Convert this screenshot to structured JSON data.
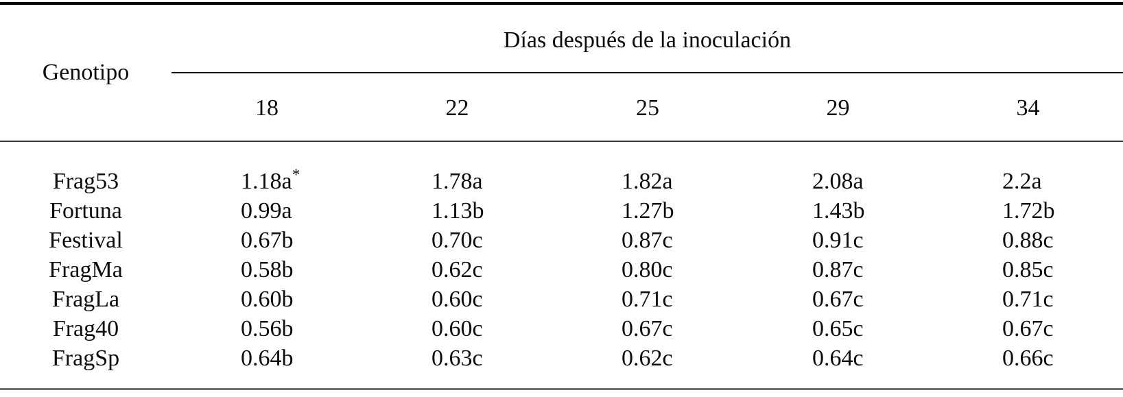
{
  "chart_data": {
    "type": "table",
    "title": "Días después de la inoculación",
    "corner_label": "Genotipo",
    "columns": [
      "18",
      "22",
      "25",
      "29",
      "34"
    ],
    "rows": [
      {
        "genotype": "Frag53",
        "values": [
          "1.18a*",
          "1.78a",
          "1.82a",
          "2.08a",
          "2.2a"
        ]
      },
      {
        "genotype": "Fortuna",
        "values": [
          "0.99a",
          "1.13b",
          "1.27b",
          "1.43b",
          "1.72b"
        ]
      },
      {
        "genotype": "Festival",
        "values": [
          "0.67b",
          "0.70c",
          "0.87c",
          "0.91c",
          "0.88c"
        ]
      },
      {
        "genotype": "FragMa",
        "values": [
          "0.58b",
          "0.62c",
          "0.80c",
          "0.87c",
          "0.85c"
        ]
      },
      {
        "genotype": "FragLa",
        "values": [
          "0.60b",
          "0.60c",
          "0.71c",
          "0.67c",
          "0.71c"
        ]
      },
      {
        "genotype": "Frag40",
        "values": [
          "0.56b",
          "0.60c",
          "0.67c",
          "0.65c",
          "0.67c"
        ]
      },
      {
        "genotype": "FragSp",
        "values": [
          "0.64b",
          "0.63c",
          "0.62c",
          "0.64c",
          "0.66c"
        ]
      }
    ],
    "footnote_marker": "*",
    "colors": {
      "text": "#0d0d0d",
      "rule_top": "#020202",
      "rule_mid": "#3a3a3a",
      "rule_span": "#0a0a0a",
      "rule_bottom": "#6e6e6e"
    }
  }
}
